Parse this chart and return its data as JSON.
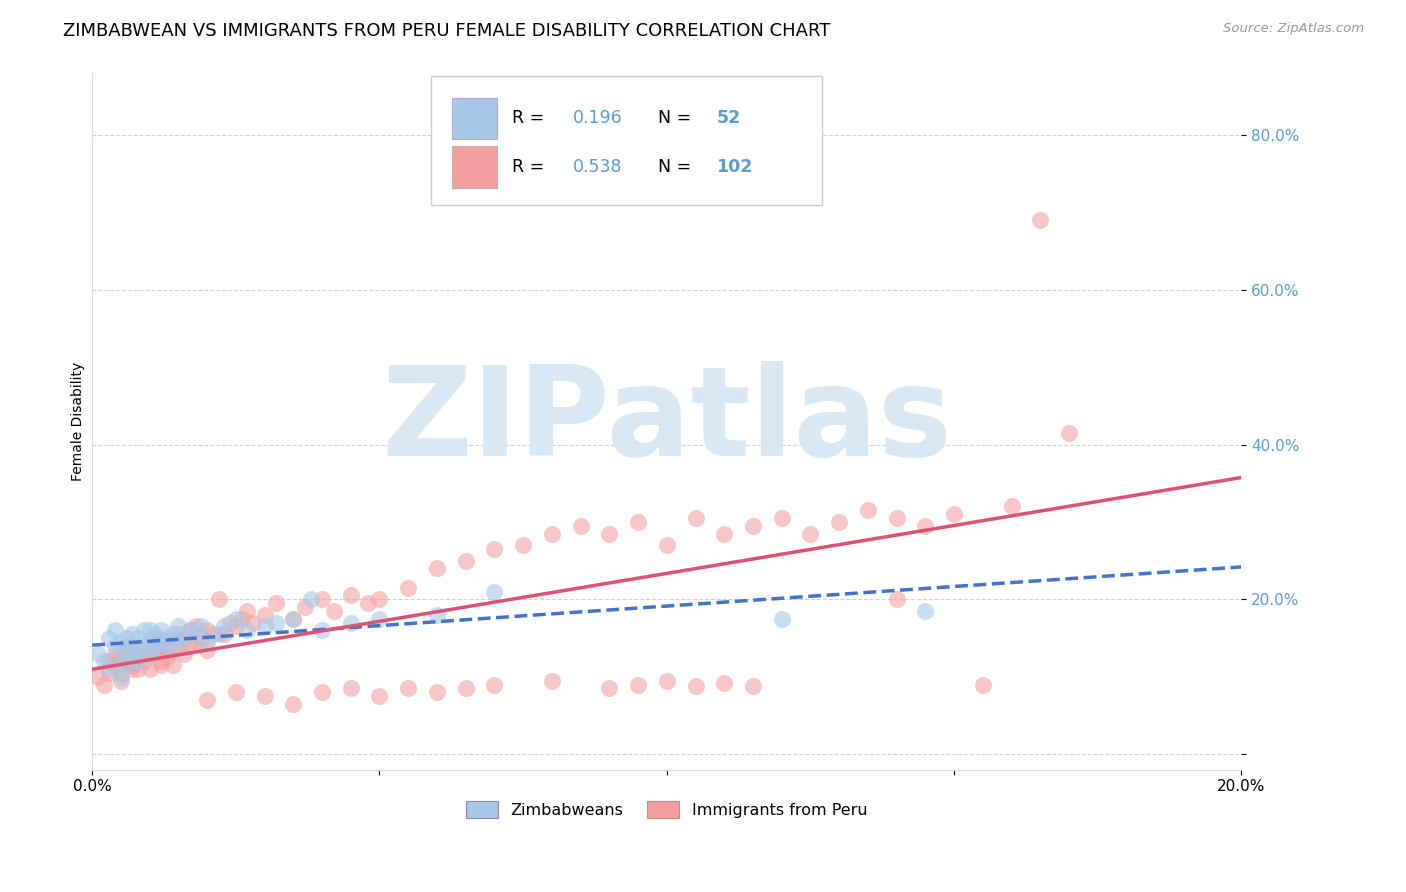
{
  "title": "ZIMBABWEAN VS IMMIGRANTS FROM PERU FEMALE DISABILITY CORRELATION CHART",
  "source": "Source: ZipAtlas.com",
  "ylabel": "Female Disability",
  "xlim": [
    0.0,
    0.2
  ],
  "ylim": [
    -0.02,
    0.88
  ],
  "yticks": [
    0.0,
    0.2,
    0.4,
    0.6,
    0.8
  ],
  "xticks": [
    0.0,
    0.05,
    0.1,
    0.15,
    0.2
  ],
  "xtick_labels": [
    "0.0%",
    "",
    "",
    "",
    "20.0%"
  ],
  "blue_color": "#A8C8E8",
  "pink_color": "#F4A0A0",
  "blue_line_color": "#4472C4",
  "pink_line_color": "#E05070",
  "axis_tick_color": "#5B9BD5",
  "R_blue": 0.196,
  "N_blue": 52,
  "R_pink": 0.538,
  "N_pink": 102,
  "blue_scatter_x": [
    0.001,
    0.002,
    0.003,
    0.003,
    0.004,
    0.004,
    0.005,
    0.005,
    0.005,
    0.006,
    0.006,
    0.006,
    0.007,
    0.007,
    0.007,
    0.008,
    0.008,
    0.008,
    0.009,
    0.009,
    0.01,
    0.01,
    0.01,
    0.011,
    0.011,
    0.012,
    0.012,
    0.013,
    0.013,
    0.014,
    0.015,
    0.015,
    0.016,
    0.017,
    0.018,
    0.019,
    0.02,
    0.022,
    0.023,
    0.025,
    0.027,
    0.03,
    0.032,
    0.035,
    0.038,
    0.04,
    0.045,
    0.05,
    0.06,
    0.07,
    0.12,
    0.145
  ],
  "blue_scatter_y": [
    0.13,
    0.12,
    0.15,
    0.11,
    0.14,
    0.16,
    0.12,
    0.145,
    0.1,
    0.135,
    0.15,
    0.115,
    0.14,
    0.125,
    0.155,
    0.135,
    0.15,
    0.12,
    0.14,
    0.16,
    0.145,
    0.13,
    0.16,
    0.14,
    0.155,
    0.145,
    0.16,
    0.15,
    0.14,
    0.155,
    0.145,
    0.165,
    0.15,
    0.16,
    0.155,
    0.165,
    0.145,
    0.155,
    0.165,
    0.175,
    0.16,
    0.165,
    0.17,
    0.175,
    0.2,
    0.16,
    0.17,
    0.175,
    0.18,
    0.21,
    0.175,
    0.185
  ],
  "pink_scatter_x": [
    0.001,
    0.002,
    0.003,
    0.003,
    0.004,
    0.004,
    0.005,
    0.005,
    0.005,
    0.006,
    0.006,
    0.007,
    0.007,
    0.007,
    0.008,
    0.008,
    0.008,
    0.009,
    0.009,
    0.01,
    0.01,
    0.01,
    0.011,
    0.011,
    0.012,
    0.012,
    0.012,
    0.013,
    0.013,
    0.014,
    0.014,
    0.015,
    0.015,
    0.016,
    0.016,
    0.017,
    0.017,
    0.018,
    0.018,
    0.019,
    0.02,
    0.02,
    0.021,
    0.022,
    0.023,
    0.024,
    0.025,
    0.026,
    0.027,
    0.028,
    0.03,
    0.032,
    0.035,
    0.037,
    0.04,
    0.042,
    0.045,
    0.048,
    0.05,
    0.055,
    0.06,
    0.065,
    0.07,
    0.075,
    0.08,
    0.085,
    0.09,
    0.095,
    0.1,
    0.105,
    0.11,
    0.115,
    0.12,
    0.125,
    0.13,
    0.135,
    0.14,
    0.145,
    0.15,
    0.16,
    0.02,
    0.025,
    0.03,
    0.035,
    0.04,
    0.045,
    0.05,
    0.055,
    0.06,
    0.065,
    0.07,
    0.08,
    0.09,
    0.095,
    0.1,
    0.105,
    0.11,
    0.115,
    0.14,
    0.155,
    0.165,
    0.17
  ],
  "pink_scatter_y": [
    0.1,
    0.09,
    0.12,
    0.105,
    0.115,
    0.13,
    0.105,
    0.125,
    0.095,
    0.12,
    0.14,
    0.115,
    0.13,
    0.11,
    0.125,
    0.14,
    0.11,
    0.13,
    0.12,
    0.135,
    0.145,
    0.11,
    0.13,
    0.15,
    0.12,
    0.14,
    0.115,
    0.135,
    0.125,
    0.145,
    0.115,
    0.14,
    0.155,
    0.13,
    0.15,
    0.14,
    0.16,
    0.145,
    0.165,
    0.15,
    0.16,
    0.135,
    0.155,
    0.2,
    0.155,
    0.17,
    0.165,
    0.175,
    0.185,
    0.17,
    0.18,
    0.195,
    0.175,
    0.19,
    0.2,
    0.185,
    0.205,
    0.195,
    0.2,
    0.215,
    0.24,
    0.25,
    0.265,
    0.27,
    0.285,
    0.295,
    0.285,
    0.3,
    0.27,
    0.305,
    0.285,
    0.295,
    0.305,
    0.285,
    0.3,
    0.315,
    0.305,
    0.295,
    0.31,
    0.32,
    0.07,
    0.08,
    0.075,
    0.065,
    0.08,
    0.085,
    0.075,
    0.085,
    0.08,
    0.085,
    0.09,
    0.095,
    0.085,
    0.09,
    0.095,
    0.088,
    0.092,
    0.088,
    0.2,
    0.09,
    0.69,
    0.415
  ],
  "watermark_text": "ZIPatlas",
  "watermark_color": "#D8E8F4",
  "background_color": "#FFFFFF",
  "grid_color": "#CCCCCC",
  "title_fontsize": 13,
  "axis_label_fontsize": 10
}
